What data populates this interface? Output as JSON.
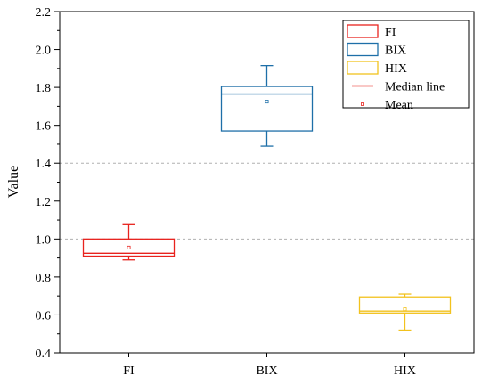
{
  "chart_data": {
    "type": "box",
    "title": "",
    "xlabel": "",
    "ylabel": "Value",
    "ylim": [
      0.4,
      2.2
    ],
    "yticks": [
      "0.4",
      "0.6",
      "0.8",
      "1.0",
      "1.2",
      "1.4",
      "1.6",
      "1.8",
      "2.0",
      "2.2"
    ],
    "reference_lines": [
      1.0,
      1.4
    ],
    "categories": [
      "FI",
      "BIX",
      "HIX"
    ],
    "series": [
      {
        "name": "FI",
        "color": "#e8231e",
        "whisker_low": 0.89,
        "q1": 0.91,
        "median": 0.925,
        "q3": 1.0,
        "whisker_high": 1.08,
        "mean": 0.955
      },
      {
        "name": "BIX",
        "color": "#1e6fa8",
        "whisker_low": 1.49,
        "q1": 1.57,
        "median": 1.765,
        "q3": 1.805,
        "whisker_high": 1.915,
        "mean": 1.725
      },
      {
        "name": "HIX",
        "color": "#f2c21e",
        "whisker_low": 0.52,
        "q1": 0.61,
        "median": 0.62,
        "q3": 0.695,
        "whisker_high": 0.71,
        "mean": 0.63
      }
    ],
    "legend": {
      "position": "top-right",
      "items": [
        "FI",
        "BIX",
        "HIX",
        "Median line",
        "Mean"
      ]
    },
    "median_legend_color": "#e8231e",
    "mean_legend_color": "#e8231e"
  }
}
